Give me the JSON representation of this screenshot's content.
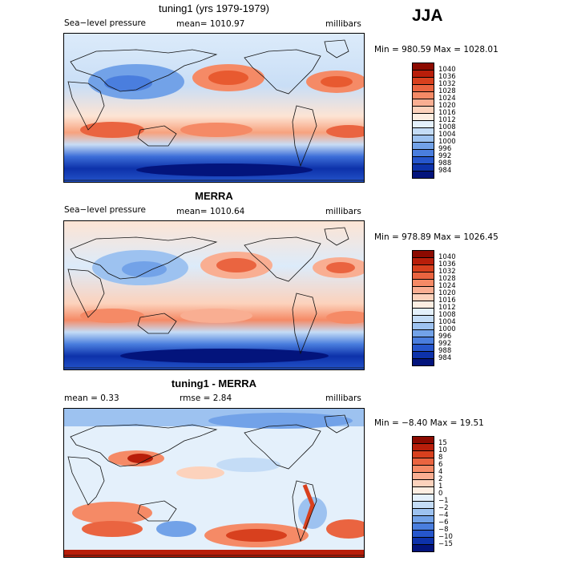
{
  "season": "JJA",
  "panels": [
    {
      "title": "tuning1 (yrs 1979-1979)",
      "left_text": "Sea−level pressure",
      "center_text": "mean= 1010.97",
      "units": "millibars",
      "minmax": "Min = 980.59 Max = 1028.01"
    },
    {
      "title": "MERRA",
      "left_text": "Sea−level pressure",
      "center_text": "mean= 1010.64",
      "units": "millibars",
      "minmax": "Min = 978.89 Max = 1026.45"
    },
    {
      "title": "tuning1 - MERRA",
      "left_text": "mean =    0.33",
      "center_text": "rmse =    2.84",
      "units": "millibars",
      "minmax": "Min =  −8.40 Max =   19.51"
    }
  ],
  "colorbars": {
    "abs": {
      "labels": [
        "1040",
        "1036",
        "1032",
        "1028",
        "1024",
        "1020",
        "1016",
        "1012",
        "1008",
        "1004",
        "1000",
        "996",
        "992",
        "988",
        "984"
      ],
      "colors": [
        "#8c0a00",
        "#b81e0a",
        "#d8401e",
        "#ea6440",
        "#f58a66",
        "#f9ae92",
        "#fcd2bc",
        "#fdeee2",
        "#e4f0fb",
        "#c4dcf6",
        "#9dc2f0",
        "#72a2e8",
        "#4a7ede",
        "#2656cc",
        "#0d32aa",
        "#03147c"
      ]
    },
    "diff": {
      "labels": [
        "15",
        "10",
        "8",
        "6",
        "4",
        "2",
        "1",
        "0",
        "−1",
        "−2",
        "−4",
        "−6",
        "−8",
        "−10",
        "−15"
      ],
      "colors": [
        "#8c0a00",
        "#b81e0a",
        "#d8401e",
        "#ea6440",
        "#f58a66",
        "#f9ae92",
        "#fcd2bc",
        "#fdeee2",
        "#e4f0fb",
        "#c4dcf6",
        "#9dc2f0",
        "#72a2e8",
        "#4a7ede",
        "#2656cc",
        "#0d32aa",
        "#03147c"
      ]
    }
  },
  "chart_data": [
    {
      "type": "heatmap",
      "title": "tuning1 (yrs 1979-1979)",
      "variable": "Sea-level pressure",
      "units": "millibars",
      "season": "JJA",
      "mean": 1010.97,
      "min": 980.59,
      "max": 1028.01,
      "contour_levels": [
        984,
        988,
        992,
        996,
        1000,
        1004,
        1008,
        1012,
        1016,
        1020,
        1024,
        1028,
        1032,
        1036,
        1040
      ]
    },
    {
      "type": "heatmap",
      "title": "MERRA",
      "variable": "Sea-level pressure",
      "units": "millibars",
      "season": "JJA",
      "mean": 1010.64,
      "min": 978.89,
      "max": 1026.45,
      "contour_levels": [
        984,
        988,
        992,
        996,
        1000,
        1004,
        1008,
        1012,
        1016,
        1020,
        1024,
        1028,
        1032,
        1036,
        1040
      ]
    },
    {
      "type": "heatmap",
      "title": "tuning1 - MERRA",
      "units": "millibars",
      "mean": 0.33,
      "rmse": 2.84,
      "min": -8.4,
      "max": 19.51,
      "contour_levels": [
        -15,
        -10,
        -8,
        -6,
        -4,
        -2,
        -1,
        0,
        1,
        2,
        4,
        6,
        8,
        10,
        15
      ]
    }
  ]
}
